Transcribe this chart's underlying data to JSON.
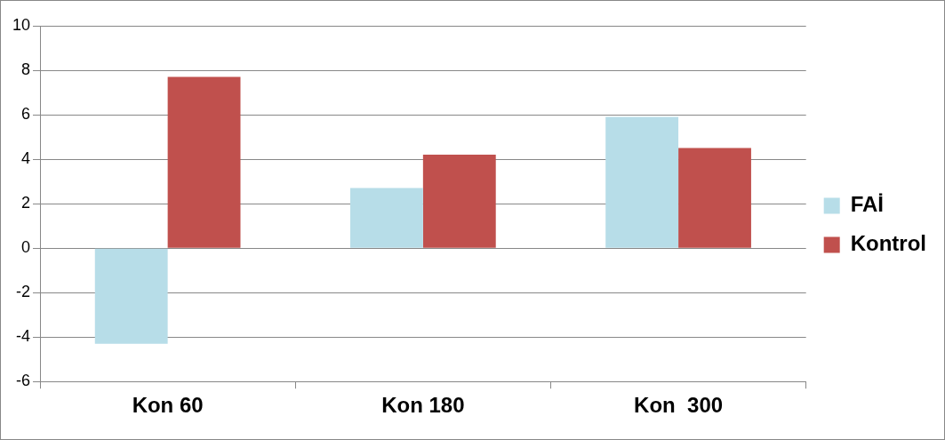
{
  "chart_data": {
    "type": "bar",
    "categories": [
      "Kon 60",
      "Kon 180",
      "Kon  300"
    ],
    "series": [
      {
        "name": "FAİ",
        "color": "#b7dde8",
        "values": [
          -4.3,
          2.7,
          5.9
        ]
      },
      {
        "name": "Kontrol",
        "color": "#c0504d",
        "values": [
          7.7,
          4.2,
          4.5
        ]
      }
    ],
    "ylim": [
      -6,
      10
    ],
    "yticks": [
      -6,
      -4,
      -2,
      0,
      2,
      4,
      6,
      8,
      10
    ],
    "grid": "y",
    "legend": "right"
  }
}
